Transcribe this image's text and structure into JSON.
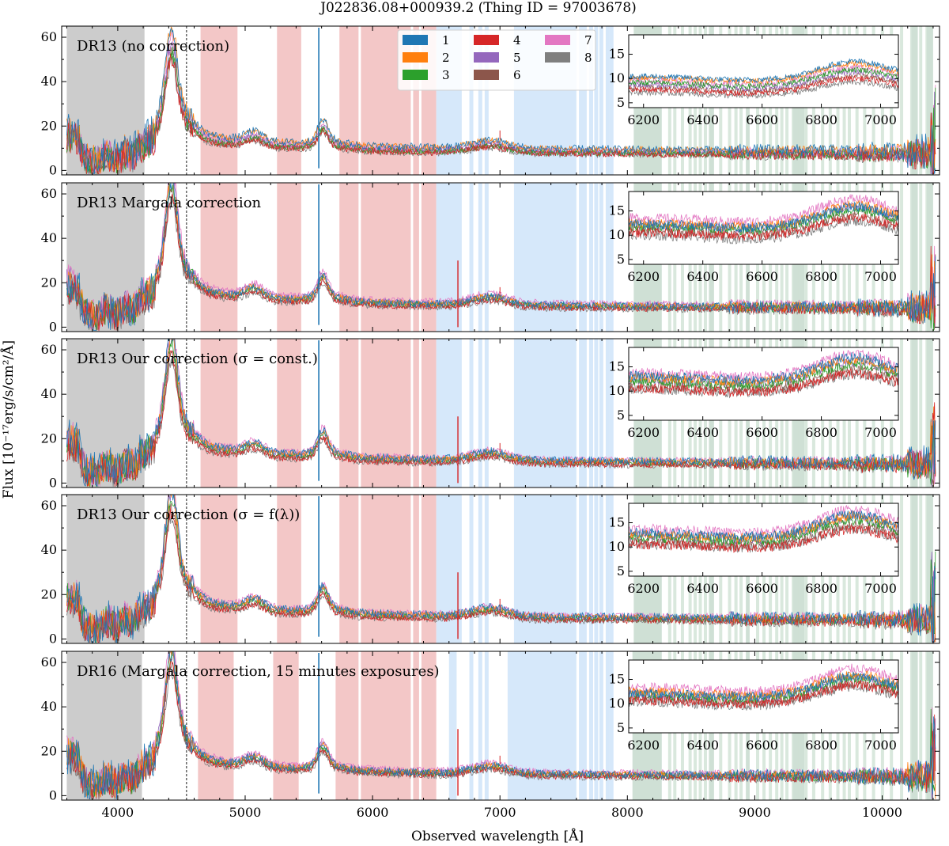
{
  "chart_data": {
    "type": "line",
    "title": "J022836.08+000939.2   (Thing ID = 97003678)",
    "xlabel": "Observed wavelength [Å]",
    "ylabel": "Flux [10⁻¹⁷erg/s/cm²/Å]",
    "xlim": [
      3560,
      10450
    ],
    "ylim": [
      -2,
      65
    ],
    "xticks": [
      "4000",
      "5000",
      "6000",
      "7000",
      "8000",
      "9000",
      "10000"
    ],
    "yticks": [
      "0",
      "20",
      "40",
      "60"
    ],
    "inset": {
      "xlim": [
        6150,
        7060
      ],
      "ylim": [
        4,
        19
      ],
      "xticks": [
        "6200",
        "6400",
        "6600",
        "6800",
        "7000"
      ],
      "yticks": [
        "5",
        "10",
        "15"
      ]
    },
    "dashed_line_x": 4540,
    "legend": {
      "placement": "top-center",
      "entries": [
        "1",
        "2",
        "3",
        "4",
        "5",
        "6",
        "7",
        "8"
      ],
      "colors": [
        "#1f77b4",
        "#ff7f0e",
        "#2ca02c",
        "#d62728",
        "#9467bd",
        "#8c564b",
        "#e377c2",
        "#7f7f7f"
      ]
    },
    "panels": [
      {
        "title": "DR13 (no correction)",
        "gray": [
          [
            3600,
            4210
          ]
        ],
        "red": [
          [
            4650,
            4940
          ],
          [
            5250,
            5440
          ],
          [
            5740,
            6500
          ]
        ],
        "blue": [
          [
            6500,
            6700
          ],
          [
            7110,
            7600
          ]
        ],
        "green": [
          [
            8050,
            8270
          ],
          [
            8640,
            8680
          ],
          [
            8930,
            8960
          ]
        ],
        "calibration_offset": [
          1.0,
          1.0,
          0.82,
          0.78,
          0.88,
          0.8,
          0.92,
          0.75
        ],
        "inset_levels": [
          10.5,
          10.2,
          9.2,
          7.8,
          8.8,
          8.2,
          9.6,
          7.2
        ]
      },
      {
        "title": "DR13 Margala correction",
        "gray": [
          [
            3600,
            4210
          ]
        ],
        "red": [
          [
            4650,
            4940
          ],
          [
            5250,
            5440
          ],
          [
            5740,
            6500
          ]
        ],
        "blue": [
          [
            6500,
            6700
          ],
          [
            7110,
            7600
          ]
        ],
        "green": [
          [
            8050,
            8270
          ],
          [
            8640,
            8680
          ],
          [
            8930,
            8960
          ]
        ],
        "calibration_offset": [
          1.0,
          1.02,
          0.98,
          0.9,
          1.05,
          0.93,
          1.12,
          0.86
        ],
        "inset_levels": [
          12.3,
          12.6,
          11.8,
          10.6,
          12.2,
          11.0,
          13.6,
          10.0
        ]
      },
      {
        "title": "DR13 Our correction (σ = const.)",
        "gray": [
          [
            3600,
            4210
          ]
        ],
        "red": [
          [
            4650,
            4940
          ],
          [
            5250,
            5440
          ],
          [
            5740,
            6500
          ]
        ],
        "blue": [
          [
            6500,
            6700
          ],
          [
            7110,
            7600
          ]
        ],
        "green": [
          [
            8050,
            8270
          ],
          [
            8640,
            8680
          ],
          [
            8930,
            8960
          ]
        ],
        "calibration_offset": [
          1.05,
          1.03,
          0.97,
          0.88,
          1.02,
          0.92,
          1.1,
          0.85
        ],
        "inset_levels": [
          13.2,
          12.8,
          12.0,
          10.6,
          12.4,
          11.2,
          13.8,
          10.4
        ]
      },
      {
        "title": "DR13 Our correction (σ = f(λ))",
        "gray": [
          [
            3600,
            4210
          ]
        ],
        "red": [
          [
            4650,
            4940
          ],
          [
            5250,
            5440
          ],
          [
            5740,
            6500
          ]
        ],
        "blue": [
          [
            6500,
            6700
          ],
          [
            7110,
            7600
          ]
        ],
        "green": [
          [
            8050,
            8270
          ],
          [
            8640,
            8680
          ],
          [
            8930,
            8960
          ]
        ],
        "calibration_offset": [
          1.05,
          1.03,
          0.97,
          0.88,
          1.02,
          0.92,
          1.1,
          0.85
        ],
        "inset_levels": [
          13.0,
          12.7,
          12.0,
          10.6,
          12.4,
          11.2,
          13.8,
          10.6
        ]
      },
      {
        "title": "DR16 (Margala correction, 15 minutes exposures)",
        "gray": [
          [
            3600,
            4190
          ]
        ],
        "red": [
          [
            4630,
            4910
          ],
          [
            5220,
            5420
          ],
          [
            5710,
            6500
          ]
        ],
        "blue": [
          [
            6600,
            6660
          ],
          [
            7060,
            7600
          ]
        ],
        "green": [
          [
            8040,
            8270
          ],
          [
            8640,
            8680
          ],
          [
            8930,
            8960
          ]
        ],
        "calibration_offset": [
          1.0,
          1.02,
          0.97,
          0.9,
          1.04,
          0.93,
          1.1,
          0.86
        ],
        "inset_levels": [
          12.2,
          12.5,
          11.8,
          10.8,
          12.0,
          11.0,
          13.4,
          10.4
        ]
      }
    ]
  }
}
